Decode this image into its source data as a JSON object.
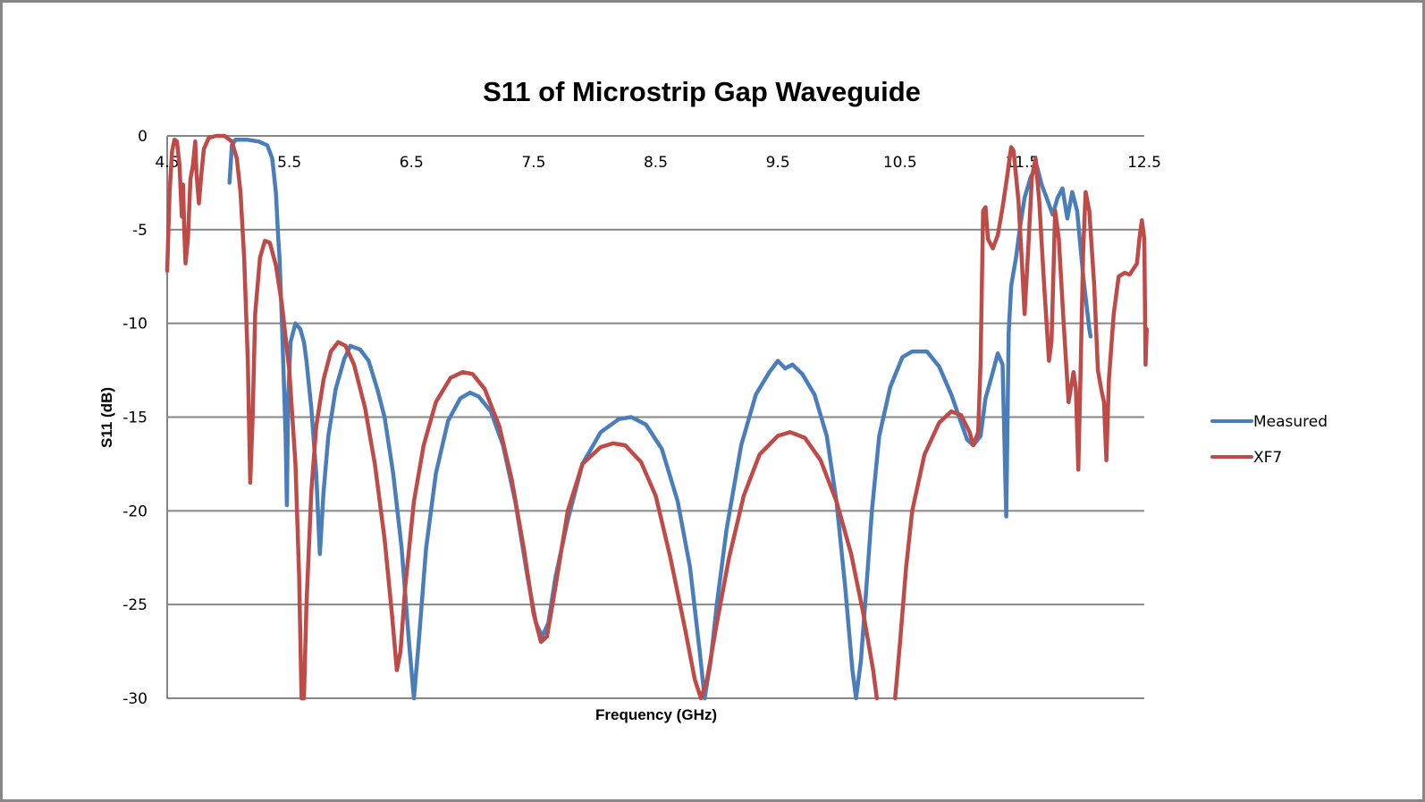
{
  "chart_data": {
    "type": "line",
    "title": "S11 of Microstrip Gap Waveguide",
    "xlabel": "Frequency (GHz)",
    "ylabel": "S11 (dB)",
    "xlim": [
      4.5,
      12.5
    ],
    "ylim": [
      -30,
      0
    ],
    "x_ticks": [
      "4.5",
      "5.5",
      "6.5",
      "7.5",
      "8.5",
      "9.5",
      "10.5",
      "11.5",
      "12.5"
    ],
    "y_ticks": [
      "0",
      "-5",
      "-10",
      "-15",
      "-20",
      "-25",
      "-30"
    ],
    "x_tick_values": [
      4.5,
      5.5,
      6.5,
      7.5,
      8.5,
      9.5,
      10.5,
      11.5,
      12.5
    ],
    "y_tick_values": [
      0,
      -5,
      -10,
      -15,
      -20,
      -25,
      -30
    ],
    "grid": "horizontal",
    "legend_position": "right",
    "series": [
      {
        "name": "Measured",
        "color": "#4a7ebb",
        "points": [
          [
            5.01,
            -2.5
          ],
          [
            5.03,
            -0.5
          ],
          [
            5.06,
            -0.2
          ],
          [
            5.15,
            -0.2
          ],
          [
            5.25,
            -0.3
          ],
          [
            5.32,
            -0.5
          ],
          [
            5.36,
            -1.2
          ],
          [
            5.39,
            -3.0
          ],
          [
            5.41,
            -5.5
          ],
          [
            5.42,
            -6.5
          ],
          [
            5.44,
            -10.0
          ],
          [
            5.47,
            -16.0
          ],
          [
            5.48,
            -19.7
          ],
          [
            5.49,
            -14.0
          ],
          [
            5.51,
            -11.0
          ],
          [
            5.55,
            -10.0
          ],
          [
            5.59,
            -10.3
          ],
          [
            5.62,
            -11.0
          ],
          [
            5.64,
            -12.0
          ],
          [
            5.68,
            -14.5
          ],
          [
            5.72,
            -18.0
          ],
          [
            5.75,
            -22.3
          ],
          [
            5.78,
            -19.0
          ],
          [
            5.82,
            -16.0
          ],
          [
            5.88,
            -13.5
          ],
          [
            5.95,
            -11.9
          ],
          [
            6.0,
            -11.2
          ],
          [
            6.08,
            -11.4
          ],
          [
            6.15,
            -12.0
          ],
          [
            6.22,
            -13.5
          ],
          [
            6.28,
            -15.0
          ],
          [
            6.35,
            -18.0
          ],
          [
            6.42,
            -22.0
          ],
          [
            6.48,
            -27.0
          ],
          [
            6.52,
            -30.0
          ],
          [
            6.56,
            -27.0
          ],
          [
            6.62,
            -22.0
          ],
          [
            6.7,
            -18.0
          ],
          [
            6.8,
            -15.2
          ],
          [
            6.9,
            -14.0
          ],
          [
            6.98,
            -13.7
          ],
          [
            7.05,
            -13.9
          ],
          [
            7.15,
            -14.7
          ],
          [
            7.25,
            -16.5
          ],
          [
            7.35,
            -19.5
          ],
          [
            7.45,
            -23.5
          ],
          [
            7.52,
            -26.0
          ],
          [
            7.57,
            -26.7
          ],
          [
            7.62,
            -26.0
          ],
          [
            7.68,
            -23.5
          ],
          [
            7.78,
            -20.5
          ],
          [
            7.9,
            -17.5
          ],
          [
            8.05,
            -15.8
          ],
          [
            8.2,
            -15.1
          ],
          [
            8.3,
            -15.0
          ],
          [
            8.42,
            -15.4
          ],
          [
            8.55,
            -16.7
          ],
          [
            8.68,
            -19.5
          ],
          [
            8.78,
            -23.0
          ],
          [
            8.86,
            -27.5
          ],
          [
            8.9,
            -30.0
          ],
          [
            8.95,
            -28.0
          ],
          [
            9.0,
            -25.0
          ],
          [
            9.08,
            -21.0
          ],
          [
            9.2,
            -16.5
          ],
          [
            9.32,
            -13.8
          ],
          [
            9.43,
            -12.6
          ],
          [
            9.5,
            -12.0
          ],
          [
            9.56,
            -12.4
          ],
          [
            9.62,
            -12.2
          ],
          [
            9.7,
            -12.7
          ],
          [
            9.8,
            -13.8
          ],
          [
            9.9,
            -16.0
          ],
          [
            9.98,
            -19.5
          ],
          [
            10.05,
            -24.0
          ],
          [
            10.11,
            -28.5
          ],
          [
            10.14,
            -30.0
          ],
          [
            10.18,
            -28.0
          ],
          [
            10.22,
            -24.5
          ],
          [
            10.27,
            -20.0
          ],
          [
            10.33,
            -16.0
          ],
          [
            10.42,
            -13.4
          ],
          [
            10.52,
            -11.8
          ],
          [
            10.6,
            -11.5
          ],
          [
            10.72,
            -11.5
          ],
          [
            10.82,
            -12.3
          ],
          [
            10.92,
            -13.8
          ],
          [
            11.0,
            -15.3
          ],
          [
            11.05,
            -16.2
          ],
          [
            11.1,
            -16.5
          ],
          [
            11.16,
            -16.0
          ],
          [
            11.2,
            -14.0
          ],
          [
            11.26,
            -12.6
          ],
          [
            11.3,
            -11.6
          ],
          [
            11.34,
            -12.2
          ],
          [
            11.37,
            -20.3
          ],
          [
            11.39,
            -10.5
          ],
          [
            11.41,
            -8.0
          ],
          [
            11.45,
            -6.5
          ],
          [
            11.48,
            -5.0
          ],
          [
            11.52,
            -3.3
          ],
          [
            11.57,
            -2.2
          ],
          [
            11.62,
            -1.6
          ],
          [
            11.66,
            -2.6
          ],
          [
            11.7,
            -3.3
          ],
          [
            11.75,
            -4.2
          ],
          [
            11.79,
            -3.3
          ],
          [
            11.83,
            -2.8
          ],
          [
            11.87,
            -4.4
          ],
          [
            11.91,
            -3.0
          ],
          [
            11.95,
            -4.0
          ],
          [
            12.0,
            -7.5
          ],
          [
            12.05,
            -10.3
          ],
          [
            12.06,
            -10.7
          ]
        ]
      },
      {
        "name": "XF7",
        "color": "#be4b48",
        "points": [
          [
            4.5,
            -7.2
          ],
          [
            4.52,
            -3.0
          ],
          [
            4.54,
            -0.8
          ],
          [
            4.56,
            -0.2
          ],
          [
            4.58,
            -0.3
          ],
          [
            4.6,
            -1.5
          ],
          [
            4.62,
            -4.3
          ],
          [
            4.63,
            -2.6
          ],
          [
            4.64,
            -5.0
          ],
          [
            4.65,
            -6.8
          ],
          [
            4.67,
            -5.5
          ],
          [
            4.69,
            -2.3
          ],
          [
            4.71,
            -1.6
          ],
          [
            4.73,
            -0.3
          ],
          [
            4.74,
            -2.0
          ],
          [
            4.76,
            -3.6
          ],
          [
            4.78,
            -2.0
          ],
          [
            4.8,
            -0.7
          ],
          [
            4.84,
            -0.1
          ],
          [
            4.9,
            0.0
          ],
          [
            4.97,
            0.0
          ],
          [
            5.03,
            -0.3
          ],
          [
            5.07,
            -1.2
          ],
          [
            5.1,
            -3.0
          ],
          [
            5.13,
            -6.5
          ],
          [
            5.16,
            -12.0
          ],
          [
            5.18,
            -18.5
          ],
          [
            5.2,
            -15.0
          ],
          [
            5.22,
            -9.5
          ],
          [
            5.26,
            -6.5
          ],
          [
            5.3,
            -5.6
          ],
          [
            5.34,
            -5.7
          ],
          [
            5.39,
            -6.9
          ],
          [
            5.44,
            -9.0
          ],
          [
            5.5,
            -12.5
          ],
          [
            5.55,
            -17.5
          ],
          [
            5.58,
            -23.5
          ],
          [
            5.6,
            -30.0
          ],
          [
            5.62,
            -30.0
          ],
          [
            5.64,
            -25.0
          ],
          [
            5.68,
            -19.0
          ],
          [
            5.72,
            -15.5
          ],
          [
            5.78,
            -13.0
          ],
          [
            5.84,
            -11.5
          ],
          [
            5.9,
            -11.0
          ],
          [
            5.96,
            -11.2
          ],
          [
            6.03,
            -12.2
          ],
          [
            6.12,
            -14.5
          ],
          [
            6.2,
            -17.5
          ],
          [
            6.28,
            -21.5
          ],
          [
            6.34,
            -25.5
          ],
          [
            6.38,
            -28.5
          ],
          [
            6.41,
            -27.5
          ],
          [
            6.45,
            -24.0
          ],
          [
            6.52,
            -19.5
          ],
          [
            6.6,
            -16.5
          ],
          [
            6.7,
            -14.2
          ],
          [
            6.82,
            -12.9
          ],
          [
            6.92,
            -12.6
          ],
          [
            7.0,
            -12.7
          ],
          [
            7.1,
            -13.5
          ],
          [
            7.22,
            -15.5
          ],
          [
            7.32,
            -18.3
          ],
          [
            7.42,
            -22.0
          ],
          [
            7.5,
            -25.5
          ],
          [
            7.56,
            -27.0
          ],
          [
            7.61,
            -26.7
          ],
          [
            7.68,
            -24.0
          ],
          [
            7.78,
            -20.0
          ],
          [
            7.9,
            -17.5
          ],
          [
            8.05,
            -16.6
          ],
          [
            8.15,
            -16.4
          ],
          [
            8.25,
            -16.5
          ],
          [
            8.38,
            -17.4
          ],
          [
            8.5,
            -19.2
          ],
          [
            8.62,
            -22.5
          ],
          [
            8.74,
            -26.3
          ],
          [
            8.82,
            -29.0
          ],
          [
            8.87,
            -30.0
          ],
          [
            8.92,
            -29.0
          ],
          [
            9.0,
            -26.0
          ],
          [
            9.1,
            -22.5
          ],
          [
            9.22,
            -19.2
          ],
          [
            9.35,
            -17.0
          ],
          [
            9.5,
            -16.0
          ],
          [
            9.6,
            -15.8
          ],
          [
            9.72,
            -16.1
          ],
          [
            9.85,
            -17.3
          ],
          [
            9.98,
            -19.5
          ],
          [
            10.1,
            -22.3
          ],
          [
            10.2,
            -25.5
          ],
          [
            10.28,
            -28.5
          ],
          [
            10.31,
            -30.0
          ]
        ],
        "points_segment_2": [
          [
            10.46,
            -30.0
          ],
          [
            10.5,
            -27.0
          ],
          [
            10.55,
            -23.0
          ],
          [
            10.6,
            -20.0
          ],
          [
            10.7,
            -17.0
          ],
          [
            10.82,
            -15.3
          ],
          [
            10.92,
            -14.7
          ],
          [
            11.0,
            -14.9
          ],
          [
            11.07,
            -15.8
          ],
          [
            11.1,
            -16.5
          ],
          [
            11.14,
            -15.8
          ],
          [
            11.16,
            -12.0
          ],
          [
            11.18,
            -4.0
          ],
          [
            11.2,
            -3.8
          ],
          [
            11.22,
            -5.5
          ],
          [
            11.26,
            -6.0
          ],
          [
            11.3,
            -5.3
          ],
          [
            11.34,
            -3.8
          ],
          [
            11.37,
            -2.5
          ],
          [
            11.41,
            -0.6
          ],
          [
            11.43,
            -0.8
          ],
          [
            11.47,
            -3.5
          ],
          [
            11.5,
            -7.0
          ],
          [
            11.52,
            -9.5
          ],
          [
            11.55,
            -6.0
          ],
          [
            11.58,
            -2.2
          ],
          [
            11.61,
            -1.2
          ],
          [
            11.64,
            -3.5
          ],
          [
            11.68,
            -8.0
          ],
          [
            11.72,
            -12.0
          ],
          [
            11.74,
            -11.0
          ],
          [
            11.77,
            -4.0
          ],
          [
            11.8,
            -5.5
          ],
          [
            11.84,
            -10.0
          ],
          [
            11.88,
            -14.2
          ],
          [
            11.92,
            -12.6
          ],
          [
            11.94,
            -13.5
          ],
          [
            11.96,
            -17.8
          ],
          [
            11.98,
            -12.0
          ],
          [
            12.0,
            -6.0
          ],
          [
            12.02,
            -3.0
          ],
          [
            12.05,
            -4.0
          ],
          [
            12.09,
            -8.0
          ],
          [
            12.12,
            -12.5
          ],
          [
            12.15,
            -13.6
          ],
          [
            12.17,
            -14.2
          ],
          [
            12.19,
            -17.3
          ],
          [
            12.21,
            -13.0
          ],
          [
            12.25,
            -9.5
          ],
          [
            12.29,
            -7.5
          ],
          [
            12.34,
            -7.3
          ],
          [
            12.38,
            -7.4
          ],
          [
            12.42,
            -7.0
          ],
          [
            12.44,
            -6.8
          ],
          [
            12.46,
            -5.5
          ],
          [
            12.48,
            -4.5
          ],
          [
            12.5,
            -5.5
          ],
          [
            12.51,
            -12.2
          ],
          [
            12.52,
            -10.3
          ]
        ]
      }
    ]
  }
}
